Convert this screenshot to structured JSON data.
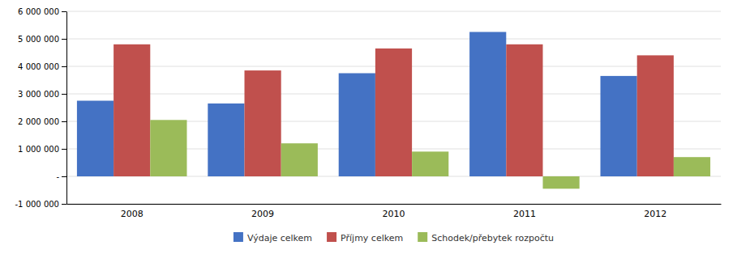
{
  "chart_data": {
    "type": "bar",
    "categories": [
      "2008",
      "2009",
      "2010",
      "2011",
      "2012"
    ],
    "series": [
      {
        "name": "Výdaje celkem",
        "color": "#4472C4",
        "values": [
          2750000,
          2650000,
          3750000,
          5250000,
          3650000
        ]
      },
      {
        "name": "Příjmy celkem",
        "color": "#C0504D",
        "values": [
          4800000,
          3850000,
          4650000,
          4800000,
          4400000
        ]
      },
      {
        "name": "Schodek/přebytek rozpočtu",
        "color": "#9BBB59",
        "values": [
          2050000,
          1200000,
          900000,
          -450000,
          700000
        ]
      }
    ],
    "ylim": [
      -1000000,
      6000000
    ],
    "yticks": [
      {
        "value": -1000000,
        "label": "-1 000 000"
      },
      {
        "value": 0,
        "label": "-"
      },
      {
        "value": 1000000,
        "label": "1 000 000"
      },
      {
        "value": 2000000,
        "label": "2 000 000"
      },
      {
        "value": 3000000,
        "label": "3 000 000"
      },
      {
        "value": 4000000,
        "label": "4 000 000"
      },
      {
        "value": 5000000,
        "label": "5 000 000"
      },
      {
        "value": 6000000,
        "label": "6 000 000"
      }
    ],
    "grid": true,
    "legend": "bottom"
  }
}
